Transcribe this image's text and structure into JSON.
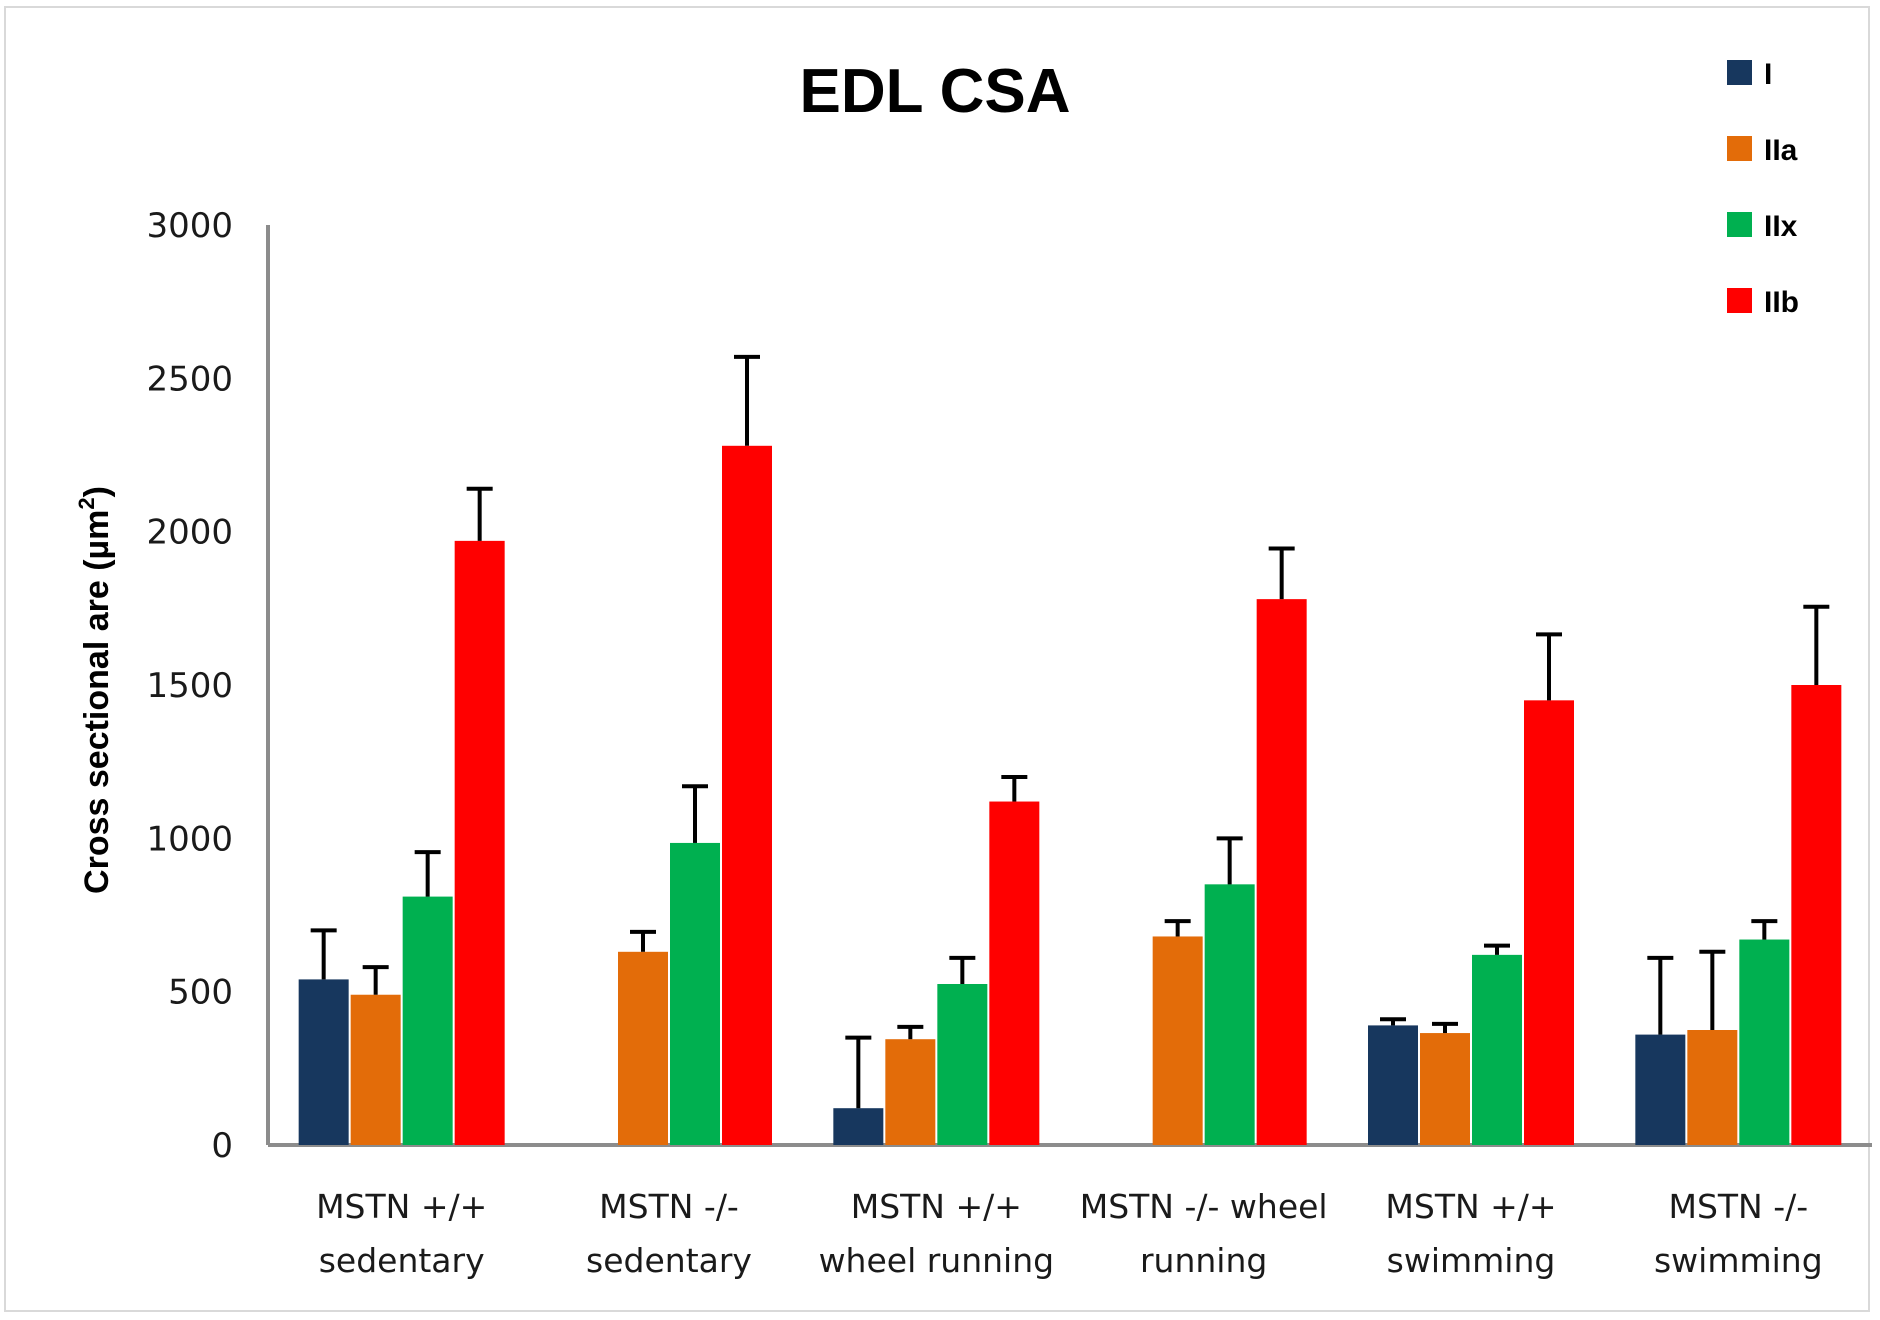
{
  "chart_data": {
    "type": "bar",
    "title": "EDL CSA",
    "xlabel": "",
    "ylabel": "Cross sectional are (µm",
    "ylabel_superscript": "2",
    "ylabel_suffix": ")",
    "ylim": [
      0,
      3000
    ],
    "yticks": [
      0,
      500,
      1000,
      1500,
      2000,
      2500,
      3000
    ],
    "grid": false,
    "legend_position": "top-right",
    "categories": [
      [
        "MSTN +/+",
        "sedentary"
      ],
      [
        "MSTN -/-",
        "sedentary"
      ],
      [
        "MSTN +/+",
        "wheel running"
      ],
      [
        "MSTN -/- wheel",
        "running"
      ],
      [
        "MSTN +/+",
        "swimming"
      ],
      [
        "MSTN -/-",
        "swimming"
      ]
    ],
    "series": [
      {
        "name": "I",
        "color": "#17375e",
        "values": [
          540,
          null,
          120,
          null,
          390,
          360
        ],
        "errors": [
          160,
          null,
          230,
          null,
          20,
          250
        ]
      },
      {
        "name": "IIa",
        "color": "#e36c09",
        "values": [
          490,
          630,
          345,
          680,
          365,
          375
        ],
        "errors": [
          90,
          65,
          40,
          50,
          30,
          255
        ]
      },
      {
        "name": "IIx",
        "color": "#00b050",
        "values": [
          810,
          985,
          525,
          850,
          620,
          670
        ],
        "errors": [
          145,
          185,
          85,
          150,
          30,
          60
        ]
      },
      {
        "name": "IIb",
        "color": "#ff0000",
        "values": [
          1970,
          2280,
          1120,
          1780,
          1450,
          1500
        ],
        "errors": [
          170,
          290,
          80,
          165,
          215,
          255
        ]
      }
    ]
  }
}
